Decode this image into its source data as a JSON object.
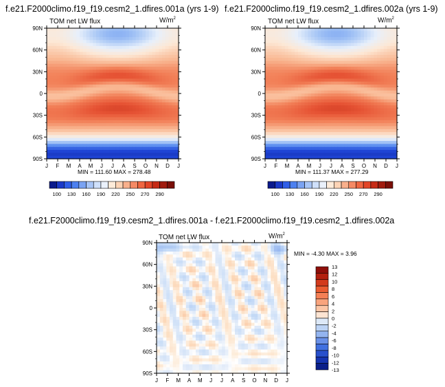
{
  "chart_data": [
    {
      "type": "heatmap",
      "title": "f.e21.F2000climo.f19_f19.cesm2_1.dfires.001a (yrs 1-9)",
      "left_label": "TOM net LW flux",
      "right_label": "W/m",
      "right_label_sup": "2",
      "x_ticks": [
        "J",
        "F",
        "M",
        "A",
        "M",
        "J",
        "J",
        "A",
        "S",
        "O",
        "N",
        "D",
        "J"
      ],
      "y_ticks": [
        "90N",
        "60N",
        "30N",
        "0",
        "30S",
        "60S",
        "90S"
      ],
      "stats": "MIN = 111.60  MAX = 278.48",
      "min": 111.6,
      "max": 278.48,
      "colorbar": {
        "orientation": "horizontal",
        "labels": [
          "100",
          "130",
          "160",
          "190",
          "220",
          "250",
          "270",
          "290"
        ],
        "colors": [
          "#0a1a8c",
          "#1a39c8",
          "#2f5ee8",
          "#4c80f0",
          "#7aa3f2",
          "#a8c5f6",
          "#cfe0fa",
          "#eaf1fb",
          "#fdebd9",
          "#fcd3b5",
          "#f9b08c",
          "#f58a65",
          "#ef6641",
          "#e24527",
          "#c62b16",
          "#a01b0e",
          "#7a0f08"
        ]
      }
    },
    {
      "type": "heatmap",
      "title": "f.e21.F2000climo.f19_f19.cesm2_1.dfires.002a (yrs 1-9)",
      "left_label": "TOM net LW flux",
      "right_label": "W/m",
      "right_label_sup": "2",
      "x_ticks": [
        "J",
        "F",
        "M",
        "A",
        "M",
        "J",
        "J",
        "A",
        "S",
        "O",
        "N",
        "D",
        "J"
      ],
      "y_ticks": [
        "90N",
        "60N",
        "30N",
        "0",
        "30S",
        "60S",
        "90S"
      ],
      "stats": "MIN = 111.37  MAX = 277.29",
      "min": 111.37,
      "max": 277.29,
      "colorbar": {
        "orientation": "horizontal",
        "labels": [
          "100",
          "130",
          "160",
          "190",
          "220",
          "250",
          "270",
          "290"
        ],
        "colors": [
          "#0a1a8c",
          "#1a39c8",
          "#2f5ee8",
          "#4c80f0",
          "#7aa3f2",
          "#a8c5f6",
          "#cfe0fa",
          "#eaf1fb",
          "#fdebd9",
          "#fcd3b5",
          "#f9b08c",
          "#f58a65",
          "#ef6641",
          "#e24527",
          "#c62b16",
          "#a01b0e",
          "#7a0f08"
        ]
      }
    },
    {
      "type": "heatmap",
      "title": "f.e21.F2000climo.f19_f19.cesm2_1.dfires.001a - f.e21.F2000climo.f19_f19.cesm2_1.dfires.002a",
      "left_label": "TOM net LW flux",
      "right_label": "W/m",
      "right_label_sup": "2",
      "x_ticks": [
        "J",
        "F",
        "M",
        "A",
        "M",
        "J",
        "J",
        "A",
        "S",
        "O",
        "N",
        "D",
        "J"
      ],
      "y_ticks": [
        "90N",
        "60N",
        "30N",
        "0",
        "30S",
        "60S",
        "90S"
      ],
      "stats": "MIN =  -4.30 MAX =   3.96",
      "min": -4.3,
      "max": 3.96,
      "colorbar": {
        "orientation": "vertical",
        "labels": [
          "13",
          "12",
          "10",
          "8",
          "6",
          "4",
          "2",
          "0",
          "-2",
          "-4",
          "-6",
          "-8",
          "-10",
          "-12",
          "-13"
        ],
        "colors": [
          "#8f0f0a",
          "#b3200f",
          "#d23a1c",
          "#ea5c31",
          "#f58055",
          "#f9a47d",
          "#fcc6a6",
          "#fde4d2",
          "#dde9f8",
          "#bcd3f5",
          "#93b4ef",
          "#6a91e8",
          "#4070e0",
          "#2850cc",
          "#1534b0",
          "#0a1f8a"
        ]
      }
    }
  ]
}
